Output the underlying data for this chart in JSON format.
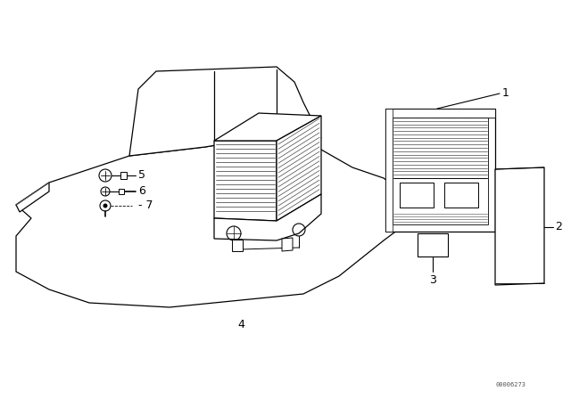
{
  "background_color": "#ffffff",
  "line_color": "#000000",
  "figure_width": 6.4,
  "figure_height": 4.48,
  "dpi": 100,
  "watermark": "00006273",
  "lw_main": 0.9,
  "lw_thin": 0.5,
  "lw_label": 0.8
}
